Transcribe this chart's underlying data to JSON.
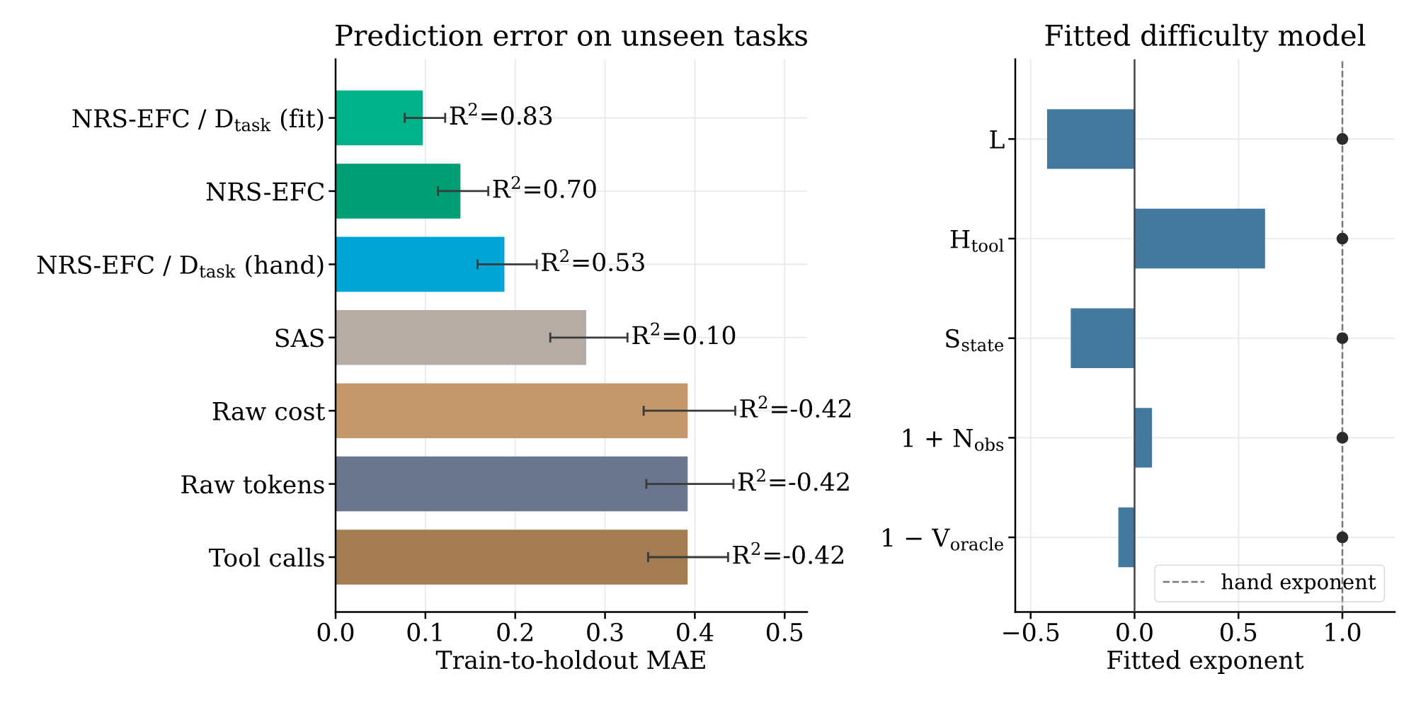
{
  "chart_data": [
    {
      "type": "bar",
      "orientation": "horizontal",
      "title": "Prediction error on unseen tasks",
      "xlabel": "Train-to-holdout MAE",
      "categories": [
        "NRS-EFC / D$_{task}$ (fit)",
        "NRS-EFC",
        "NRS-EFC / D$_{task}$ (hand)",
        "SAS",
        "Raw cost",
        "Raw tokens",
        "Tool calls"
      ],
      "values": [
        0.097,
        0.139,
        0.188,
        0.279,
        0.392,
        0.392,
        0.392
      ],
      "colors": [
        "#00b287",
        "#009e73",
        "#00a5d6",
        "#b5aca5",
        "#c4976a",
        "#6a768e",
        "#a47c52"
      ],
      "errors": [
        [
          0.077,
          0.122
        ],
        [
          0.114,
          0.17
        ],
        [
          0.158,
          0.224
        ],
        [
          0.239,
          0.325
        ],
        [
          0.343,
          0.445
        ],
        [
          0.346,
          0.443
        ],
        [
          0.348,
          0.437
        ]
      ],
      "value_labels": [
        "R$^{2}$=0.83",
        "R$^{2}$=0.70",
        "R$^{2}$=0.53",
        "R$^{2}$=0.10",
        "R$^{2}$=-0.42",
        "R$^{2}$=-0.42",
        "R$^{2}$=-0.42"
      ],
      "xlim": [
        0,
        0.525
      ],
      "xticks": [
        {
          "value": 0,
          "label": "0.0"
        },
        0.1,
        0.2,
        0.3,
        0.4,
        0.5
      ],
      "grid": true
    },
    {
      "type": "bar",
      "orientation": "horizontal",
      "title": "Fitted difficulty model",
      "xlabel": "Fitted exponent",
      "categories": [
        "L",
        "H$_{tool}$",
        "S$_{state}$",
        "1 + N$_{obs}$",
        "1 − V$_{oracle}$"
      ],
      "series": [
        {
          "type": "bar",
          "color": "#44799e",
          "values": [
            -0.421,
            0.628,
            -0.307,
            0.084,
            -0.078
          ]
        },
        {
          "type": "scatter",
          "color": "#2b2b2b",
          "marker": "circle",
          "values": [
            1.0,
            1.0,
            1.0,
            1.0,
            1.0
          ]
        }
      ],
      "ref_lines": [
        {
          "axis": "x",
          "value": 0,
          "color": "#444444",
          "line_style": "solid"
        },
        {
          "axis": "x",
          "value": 1.0,
          "label": "hand exponent",
          "color": "#777777",
          "line_style": "dashed"
        }
      ],
      "xlim": [
        -0.574,
        1.252
      ],
      "xticks": [
        {
          "value": -0.5,
          "label": "−0.5"
        },
        {
          "value": 0,
          "label": "0.0"
        },
        0.5,
        {
          "value": 1,
          "label": "1.0"
        }
      ],
      "grid": true,
      "legend": "lower right"
    }
  ]
}
